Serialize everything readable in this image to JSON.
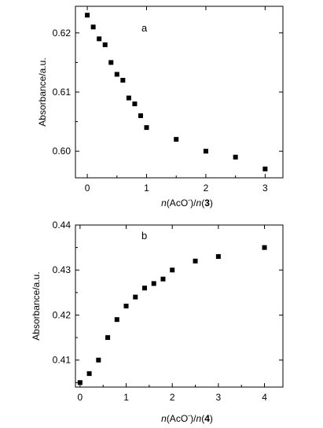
{
  "chart_data": [
    {
      "type": "scatter",
      "panel_label": "a",
      "ylabel": "Absorbance/a.u.",
      "xlabel": {
        "pre": "n",
        "mid": "(AcO",
        "sup": "-",
        "post": ")/",
        "n2": "n",
        "open": "(",
        "num": "3",
        "close": ")"
      },
      "xlim": [
        -0.2,
        3.3
      ],
      "ylim": [
        0.5955,
        0.6245
      ],
      "xticks": [
        0,
        1,
        2,
        3
      ],
      "xtick_labels": [
        "0",
        "1",
        "2",
        "3"
      ],
      "yticks": [
        0.6,
        0.61,
        0.62
      ],
      "ytick_labels": [
        "0.60",
        "0.61",
        "0.62"
      ],
      "grid": false,
      "series": [
        {
          "marker": "square",
          "color": "#000000",
          "x": [
            0,
            0.1,
            0.2,
            0.3,
            0.4,
            0.5,
            0.6,
            0.7,
            0.8,
            0.9,
            1.0,
            1.5,
            2.0,
            2.5,
            3.0
          ],
          "y": [
            0.623,
            0.621,
            0.619,
            0.618,
            0.615,
            0.613,
            0.612,
            0.609,
            0.608,
            0.606,
            0.604,
            0.602,
            0.6,
            0.599,
            0.597
          ]
        }
      ]
    },
    {
      "type": "scatter",
      "panel_label": "b",
      "ylabel": "Absorbance/a.u.",
      "xlabel": {
        "pre": "n",
        "mid": "(AcO",
        "sup": "-",
        "post": ")/",
        "n2": "n",
        "open": "(",
        "num": "4",
        "close": ")"
      },
      "xlim": [
        -0.1,
        4.4
      ],
      "ylim": [
        0.404,
        0.44
      ],
      "xticks": [
        0,
        1,
        2,
        3,
        4
      ],
      "xtick_labels": [
        "0",
        "1",
        "2",
        "3",
        "4"
      ],
      "yticks": [
        0.41,
        0.42,
        0.43,
        0.44
      ],
      "ytick_labels": [
        "0.41",
        "0.42",
        "0.43",
        "0.44"
      ],
      "grid": false,
      "series": [
        {
          "marker": "square",
          "color": "#000000",
          "x": [
            0,
            0.2,
            0.4,
            0.6,
            0.8,
            1.0,
            1.2,
            1.4,
            1.6,
            1.8,
            2.0,
            2.5,
            3.0,
            4.0
          ],
          "y": [
            0.405,
            0.407,
            0.41,
            0.415,
            0.419,
            0.422,
            0.424,
            0.426,
            0.427,
            0.428,
            0.43,
            0.432,
            0.433,
            0.435
          ]
        }
      ]
    }
  ]
}
